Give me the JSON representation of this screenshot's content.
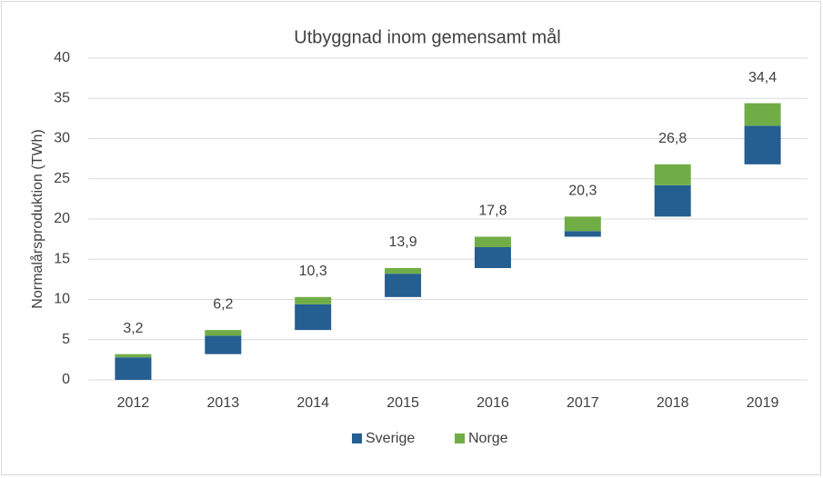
{
  "chart_data": {
    "type": "waterfall",
    "title": "Utbyggnad inom gemensamt mål",
    "y_label": "Normalårsproduktion (TWh)",
    "categories": [
      "2012",
      "2013",
      "2014",
      "2015",
      "2016",
      "2017",
      "2018",
      "2019"
    ],
    "series": [
      {
        "name": "Sverige",
        "color": "#255e91",
        "values": [
          2.8,
          2.3,
          3.2,
          2.9,
          2.6,
          0.7,
          3.9,
          4.8
        ]
      },
      {
        "name": "Norge",
        "color": "#70ad47",
        "values": [
          0.4,
          0.7,
          0.9,
          0.7,
          1.3,
          1.8,
          2.6,
          2.8
        ]
      }
    ],
    "totals": [
      3.2,
      6.2,
      10.3,
      13.9,
      17.8,
      20.3,
      26.8,
      34.4
    ],
    "total_labels": [
      "3,2",
      "6,2",
      "10,3",
      "13,9",
      "17,8",
      "20,3",
      "26,8",
      "34,4"
    ],
    "ylim": [
      0,
      40
    ],
    "yticks": [
      0,
      5,
      10,
      15,
      20,
      25,
      30,
      35,
      40
    ],
    "grid": true,
    "legend": "bottom"
  }
}
